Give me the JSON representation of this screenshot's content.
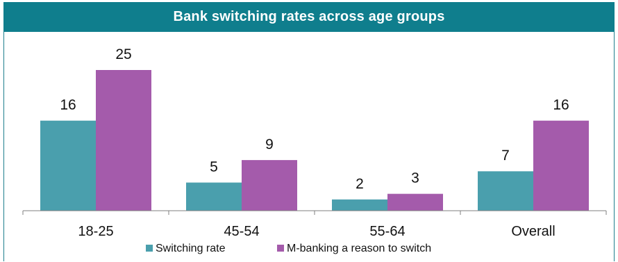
{
  "chart_data": {
    "type": "bar",
    "title": "Bank switching rates across age groups",
    "categories": [
      "18-25",
      "45-54",
      "55-64",
      "Overall"
    ],
    "series": [
      {
        "name": "Switching rate",
        "values": [
          16,
          5,
          2,
          7
        ],
        "color": "#4a9fad"
      },
      {
        "name": "M-banking a reason to switch",
        "values": [
          25,
          9,
          3,
          16
        ],
        "color": "#a45bab"
      }
    ],
    "ylim": [
      0,
      25
    ],
    "data_labels": true,
    "grid": false,
    "legend": "bottom"
  }
}
